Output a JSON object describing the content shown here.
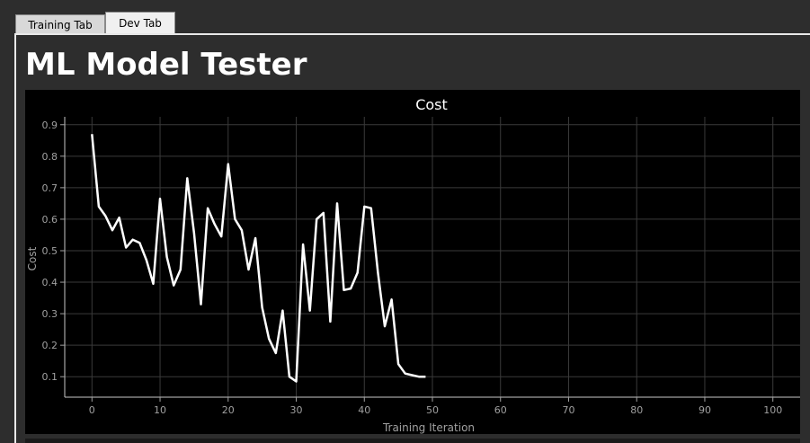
{
  "tabs": [
    {
      "label": "Training Tab",
      "active": false
    },
    {
      "label": "Dev Tab",
      "active": true
    }
  ],
  "page_title": "ML Model Tester",
  "colors": {
    "background": "#2d2d2d",
    "chart_bg": "#000000",
    "line": "#ffffff",
    "grid": "#3a3a3a",
    "axis_text": "#a0a0a0"
  },
  "chart_data": {
    "type": "line",
    "title": "Cost",
    "xlabel": "Training Iteration",
    "ylabel": "Cost",
    "xlim": [
      -4,
      104
    ],
    "ylim": [
      0.035,
      0.925
    ],
    "xticks": [
      0,
      10,
      20,
      30,
      40,
      50,
      60,
      70,
      80,
      90,
      100
    ],
    "yticks": [
      0.1,
      0.2,
      0.3,
      0.4,
      0.5,
      0.6,
      0.7,
      0.8,
      0.9
    ],
    "grid": true,
    "series": [
      {
        "x": [
          0,
          1,
          2,
          3,
          4,
          5,
          6,
          7,
          8,
          9,
          10,
          11,
          12,
          13,
          14,
          15,
          16,
          17,
          18,
          19,
          20,
          21,
          22,
          23,
          24,
          25,
          26,
          27,
          28,
          29,
          30,
          31,
          32,
          33,
          34,
          35,
          36,
          37,
          38,
          39,
          40,
          41,
          42,
          43,
          44,
          45,
          46,
          47,
          48,
          49
        ],
        "values": [
          0.87,
          0.64,
          0.61,
          0.565,
          0.605,
          0.51,
          0.535,
          0.525,
          0.47,
          0.395,
          0.665,
          0.48,
          0.39,
          0.44,
          0.73,
          0.555,
          0.33,
          0.635,
          0.585,
          0.545,
          0.775,
          0.6,
          0.565,
          0.44,
          0.54,
          0.32,
          0.22,
          0.175,
          0.31,
          0.1,
          0.085,
          0.52,
          0.31,
          0.6,
          0.62,
          0.275,
          0.65,
          0.375,
          0.38,
          0.43,
          0.64,
          0.635,
          0.43,
          0.26,
          0.345,
          0.14,
          0.11,
          0.105,
          0.1,
          0.1
        ]
      }
    ]
  }
}
